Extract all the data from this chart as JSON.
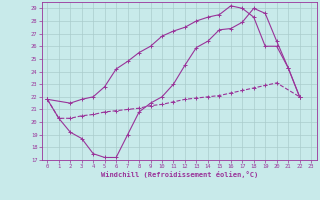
{
  "xlabel": "Windchill (Refroidissement éolien,°C)",
  "xlim": [
    -0.5,
    23.5
  ],
  "ylim": [
    17,
    29.5
  ],
  "yticks": [
    17,
    18,
    19,
    20,
    21,
    22,
    23,
    24,
    25,
    26,
    27,
    28,
    29
  ],
  "xticks": [
    0,
    1,
    2,
    3,
    4,
    5,
    6,
    7,
    8,
    9,
    10,
    11,
    12,
    13,
    14,
    15,
    16,
    17,
    18,
    19,
    20,
    21,
    22,
    23
  ],
  "bg_color": "#c8eaea",
  "grid_color": "#aacccc",
  "line_color": "#993399",
  "line1_y": [
    21.8,
    20.3,
    19.2,
    18.7,
    17.5,
    17.2,
    17.2,
    19.0,
    20.8,
    21.5,
    22.0,
    23.0,
    24.5,
    25.9,
    26.4,
    27.3,
    27.4,
    27.9,
    29.0,
    28.6,
    26.4,
    24.3,
    22.0
  ],
  "line1_x": [
    0,
    1,
    2,
    3,
    4,
    5,
    6,
    7,
    8,
    9,
    10,
    11,
    12,
    13,
    14,
    15,
    16,
    17,
    18,
    19,
    20,
    21,
    22
  ],
  "line2_y": [
    21.8,
    21.5,
    21.8,
    22.0,
    22.8,
    24.2,
    24.8,
    25.5,
    26.0,
    26.8,
    27.2,
    27.5,
    28.0,
    28.3,
    28.5,
    29.2,
    29.0,
    28.3,
    26.0,
    26.0,
    24.3,
    22.0
  ],
  "line2_x": [
    0,
    2,
    3,
    4,
    5,
    6,
    7,
    8,
    9,
    10,
    11,
    12,
    13,
    14,
    15,
    16,
    17,
    18,
    19,
    20,
    21,
    22
  ],
  "line3_y": [
    21.8,
    20.3,
    20.3,
    20.5,
    20.6,
    20.8,
    20.9,
    21.0,
    21.1,
    21.3,
    21.4,
    21.6,
    21.8,
    21.9,
    22.0,
    22.1,
    22.3,
    22.5,
    22.7,
    22.9,
    23.1,
    22.0
  ],
  "line3_x": [
    0,
    1,
    2,
    3,
    4,
    5,
    6,
    7,
    8,
    9,
    10,
    11,
    12,
    13,
    14,
    15,
    16,
    17,
    18,
    19,
    20,
    22
  ]
}
